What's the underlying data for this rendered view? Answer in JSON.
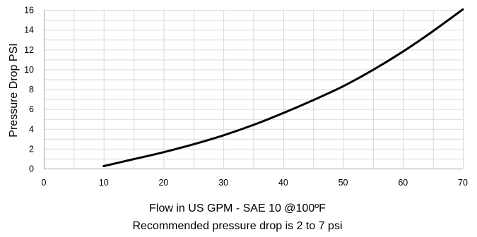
{
  "chart_data": {
    "type": "line",
    "title": "",
    "xlabel": "Flow in US GPM - SAE 10 @100ºF",
    "xlabel_line2": "Recommended pressure drop is 2 to 7 psi",
    "ylabel": "Pressure Drop PSI",
    "xlim": [
      0,
      70
    ],
    "ylim": [
      0,
      16
    ],
    "x_ticks": [
      0,
      10,
      20,
      30,
      40,
      50,
      60,
      70
    ],
    "y_ticks": [
      0,
      2,
      4,
      6,
      8,
      10,
      12,
      14,
      16
    ],
    "grid": true,
    "series": [
      {
        "x": [
          10,
          15,
          20,
          25,
          30,
          35,
          40,
          45,
          50,
          55,
          60,
          65,
          70
        ],
        "y": [
          0.25,
          0.95,
          1.65,
          2.45,
          3.35,
          4.4,
          5.6,
          6.9,
          8.3,
          9.95,
          11.8,
          13.85,
          16.05
        ]
      }
    ],
    "colors": {
      "line": "#000000",
      "grid": "#d9d9d9",
      "axis": "#a6a6a6"
    }
  }
}
